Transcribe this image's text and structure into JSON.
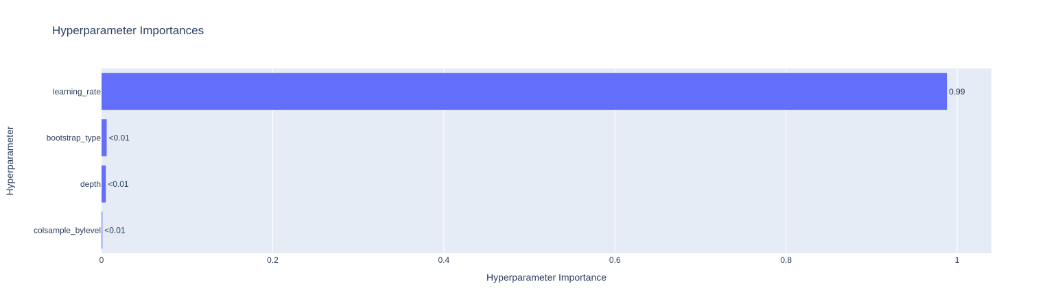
{
  "chart_data": {
    "type": "bar",
    "orientation": "horizontal",
    "title": "Hyperparameter Importances",
    "xlabel": "Hyperparameter Importance",
    "ylabel": "Hyperparameter",
    "xlim": [
      0,
      1.04
    ],
    "x_ticks": [
      0,
      0.2,
      0.4,
      0.6,
      0.8,
      1
    ],
    "x_tick_labels": [
      "0",
      "0.2",
      "0.4",
      "0.6",
      "0.8",
      "1"
    ],
    "categories": [
      "learning_rate",
      "bootstrap_type",
      "depth",
      "colsample_bylevel"
    ],
    "values": [
      0.988,
      0.006,
      0.005,
      0.001
    ],
    "data_labels": [
      "0.99",
      "<0.01",
      "<0.01",
      "<0.01"
    ],
    "bar_color": "#636efa",
    "plot_background": "#e5ecf6",
    "grid": true,
    "legend": false
  }
}
